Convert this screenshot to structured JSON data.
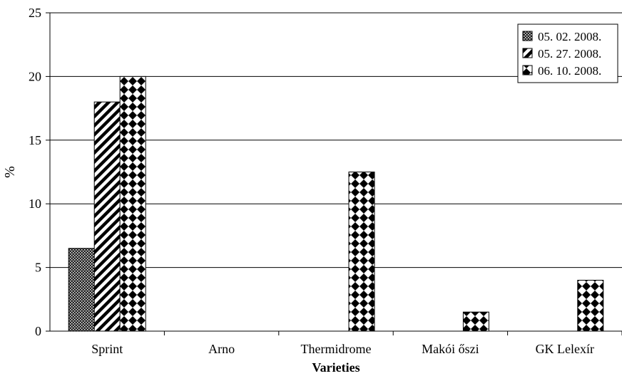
{
  "chart_data": {
    "type": "bar",
    "categories": [
      "Sprint",
      "Arno",
      "Thermidrome",
      "Makói őszi",
      "GK Lelexír"
    ],
    "series": [
      {
        "name": "05. 02. 2008.",
        "values": [
          6.5,
          0,
          0,
          0,
          0
        ],
        "pattern": "dots"
      },
      {
        "name": "05. 27. 2008.",
        "values": [
          18,
          0,
          0,
          0,
          0
        ],
        "pattern": "diagonal-stripes"
      },
      {
        "name": "06. 10. 2008.",
        "values": [
          20,
          0,
          12.5,
          1.5,
          4
        ],
        "pattern": "diamond-checker"
      }
    ],
    "xlabel": "Varieties",
    "ylabel": "%",
    "ylim": [
      0,
      25
    ],
    "yticks": [
      0,
      5,
      10,
      15,
      20,
      25
    ],
    "grid": true,
    "legend_position": "top-right"
  }
}
